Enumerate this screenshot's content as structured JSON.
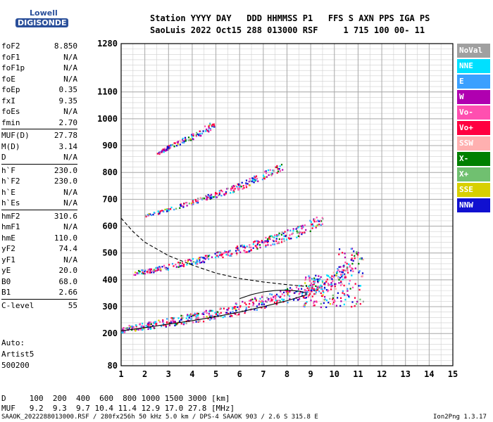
{
  "logo": {
    "line1": "Lowell",
    "line2": "DIGISONDE"
  },
  "header": {
    "line1": "Station YYYY DAY   DDD HHMMSS P1   FFS S AXN PPS IGA PS",
    "line2": "SaoLuis 2022 Oct15 288 013000 RSF     1 715 100 00- 11"
  },
  "params": [
    [
      {
        "label": "foF2",
        "value": "8.850"
      },
      {
        "label": "foF1",
        "value": "N/A"
      },
      {
        "label": "foF1p",
        "value": "N/A"
      },
      {
        "label": "foE",
        "value": "N/A"
      },
      {
        "label": "foEp",
        "value": "0.35"
      },
      {
        "label": "fxI",
        "value": "9.35"
      },
      {
        "label": "foEs",
        "value": "N/A"
      },
      {
        "label": "fmin",
        "value": "2.70"
      }
    ],
    [
      {
        "label": "MUF(D)",
        "value": "27.78"
      },
      {
        "label": "M(D)",
        "value": "3.14"
      },
      {
        "label": "D",
        "value": "N/A"
      }
    ],
    [
      {
        "label": "h`F",
        "value": "230.0"
      },
      {
        "label": "h`F2",
        "value": "230.0"
      },
      {
        "label": "h`E",
        "value": "N/A"
      },
      {
        "label": "h`Es",
        "value": "N/A"
      }
    ],
    [
      {
        "label": "hmF2",
        "value": "310.6"
      },
      {
        "label": "hmF1",
        "value": "N/A"
      },
      {
        "label": "hmE",
        "value": "110.0"
      },
      {
        "label": "yF2",
        "value": "74.4"
      },
      {
        "label": "yF1",
        "value": "N/A"
      },
      {
        "label": "yE",
        "value": "20.0"
      },
      {
        "label": "B0",
        "value": "68.0"
      },
      {
        "label": "B1",
        "value": "2.66"
      }
    ],
    [
      {
        "label": "C-level",
        "value": "55"
      }
    ]
  ],
  "auto": {
    "line1": "Auto:",
    "line2": "Artist5",
    "line3": "500200"
  },
  "legend": [
    {
      "label": "NoVal",
      "color": "#a0a0a0"
    },
    {
      "label": "NNE",
      "color": "#00e0ff"
    },
    {
      "label": "E",
      "color": "#3aa0ff"
    },
    {
      "label": "W",
      "color": "#b000b0"
    },
    {
      "label": "Vo-",
      "color": "#ff4fb0"
    },
    {
      "label": "Vo+",
      "color": "#ff0040"
    },
    {
      "label": "SSW",
      "color": "#ffb0b0"
    },
    {
      "label": "X-",
      "color": "#008000"
    },
    {
      "label": "X+",
      "color": "#70c070"
    },
    {
      "label": "SSE",
      "color": "#d8d000"
    },
    {
      "label": "NNW",
      "color": "#1010d0"
    }
  ],
  "bottom": {
    "dist_line": "D     100  200  400  600  800 1000 1500 3000 [km]",
    "muf_line": "MUF   9.2  9.3  9.7 10.4 11.4 12.9 17.0 27.8 [MHz]"
  },
  "footer": {
    "left": "SAAOK_2022288013000.RSF / 280fx256h 50 kHz 5.0 km / DPS-4 SAAOK 903 / 2.6 S 315.8 E",
    "right": "Ion2Png 1.3.17"
  },
  "chart_data": {
    "type": "scatter",
    "xlim": [
      1,
      15
    ],
    "ylim": [
      80,
      1280
    ],
    "x_ticks": [
      1,
      2,
      3,
      4,
      5,
      6,
      7,
      8,
      9,
      10,
      11,
      12,
      13,
      14,
      15
    ],
    "y_ticks": [
      80,
      200,
      300,
      400,
      500,
      600,
      700,
      800,
      900,
      1000,
      1100,
      1280
    ],
    "grid": true,
    "ionogram_traces": [
      {
        "name": "1-hop O",
        "x": [
          1.0,
          2.0,
          3.0,
          4.0,
          5.0,
          6.0,
          7.0,
          8.0,
          8.9,
          9.5,
          10.0,
          10.5,
          11.0
        ],
        "y": [
          215,
          228,
          242,
          256,
          272,
          292,
          318,
          340,
          362,
          380,
          400,
          440,
          480
        ]
      },
      {
        "name": "2-hop",
        "x": [
          1.5,
          2.5,
          3.5,
          4.5,
          5.5,
          6.5,
          7.5,
          8.5,
          9.5
        ],
        "y": [
          425,
          440,
          458,
          478,
          500,
          525,
          550,
          580,
          625
        ]
      },
      {
        "name": "3-hop",
        "x": [
          2.0,
          3.0,
          4.0,
          5.0,
          6.0,
          7.0,
          7.8
        ],
        "y": [
          640,
          662,
          690,
          718,
          748,
          790,
          820
        ]
      },
      {
        "name": "4-hop",
        "x": [
          2.5,
          3.0,
          3.5,
          4.0,
          4.5,
          5.0
        ],
        "y": [
          870,
          895,
          915,
          935,
          958,
          980
        ]
      }
    ],
    "lines": [
      {
        "name": "profile-dashed",
        "x": [
          1.0,
          1.5,
          2.0,
          3.0,
          4.0,
          5.0,
          6.0,
          7.0,
          8.0,
          8.85
        ],
        "y": [
          630,
          580,
          540,
          490,
          455,
          425,
          405,
          392,
          382,
          375
        ]
      },
      {
        "name": "trace-fit-lower",
        "x": [
          1.0,
          2.0,
          3.0,
          4.0,
          5.0,
          6.0,
          7.0,
          8.0,
          8.85
        ],
        "y": [
          210,
          222,
          235,
          248,
          263,
          280,
          300,
          322,
          345
        ]
      },
      {
        "name": "trace-fit-upper",
        "x": [
          6.0,
          6.5,
          7.0,
          7.5,
          8.0,
          8.5,
          8.85
        ],
        "y": [
          330,
          345,
          355,
          360,
          362,
          358,
          350
        ]
      }
    ]
  }
}
